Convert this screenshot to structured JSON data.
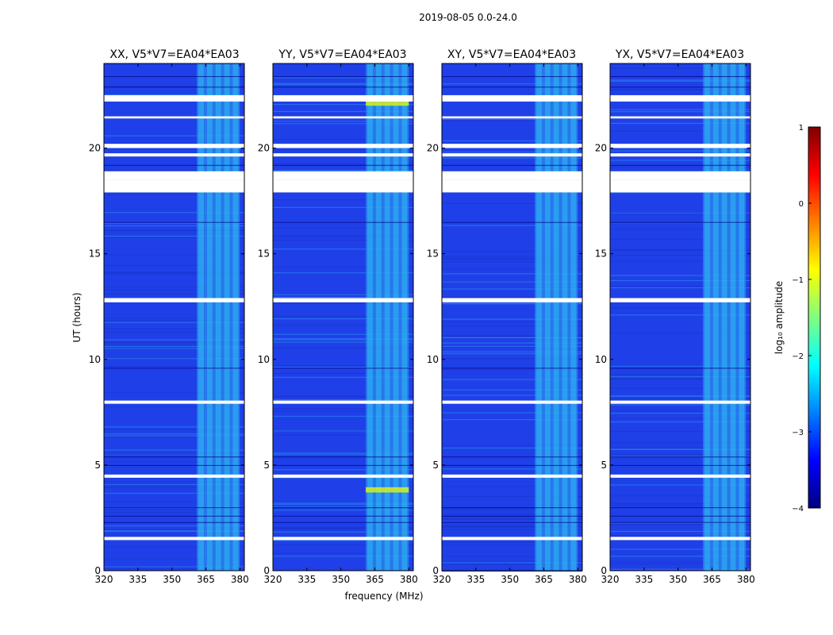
{
  "suptitle": "2019-08-05 0.0-24.0",
  "colors": {
    "band_base": "#1f40e8",
    "band_hi": "#2ecbf4",
    "band_mid": "#2b8fef",
    "flagged": "#ffffff",
    "dark_line": "#00007f",
    "rfi_strong": "#d8f020"
  },
  "chart_data": {
    "type": "heatmap",
    "xlabel": "frequency (MHz)",
    "ylabel": "UT (hours)",
    "xlim": [
      320,
      382
    ],
    "ylim": [
      0,
      24
    ],
    "xticks": [
      "320",
      "335",
      "350",
      "365",
      "380"
    ],
    "xtick_values": [
      320,
      335,
      350,
      365,
      380
    ],
    "yticks": [
      "0",
      "5",
      "10",
      "15",
      "20"
    ],
    "ytick_values": [
      0,
      5,
      10,
      15,
      20
    ],
    "rfi_band_mhz": [
      361,
      380
    ],
    "flagged_hours": [
      [
        1.45,
        1.6
      ],
      [
        4.4,
        4.55
      ],
      [
        7.9,
        8.05
      ],
      [
        12.7,
        12.9
      ],
      [
        17.9,
        18.5
      ],
      [
        18.5,
        18.9
      ],
      [
        19.6,
        19.75
      ],
      [
        20.0,
        20.2
      ],
      [
        21.4,
        21.5
      ],
      [
        22.2,
        22.5
      ]
    ],
    "colorbar": {
      "label": "log₁₀ amplitude",
      "range": [
        -4,
        1
      ],
      "ticks": [
        "1",
        "0",
        "−1",
        "−2",
        "−3",
        "−4"
      ],
      "tick_values": [
        1,
        0,
        -1,
        -2,
        -3,
        -4
      ],
      "colormap": "jet"
    },
    "panels": [
      {
        "title": "XX, V5*V7=EA04*EA03",
        "strong_rfi_hours": []
      },
      {
        "title": "YY, V5*V7=EA04*EA03",
        "strong_rfi_hours": [
          [
            3.7,
            3.95
          ],
          [
            22.0,
            22.4
          ]
        ]
      },
      {
        "title": "XY, V5*V7=EA04*EA03",
        "strong_rfi_hours": []
      },
      {
        "title": "YX, V5*V7=EA04*EA03",
        "strong_rfi_hours": []
      }
    ]
  }
}
